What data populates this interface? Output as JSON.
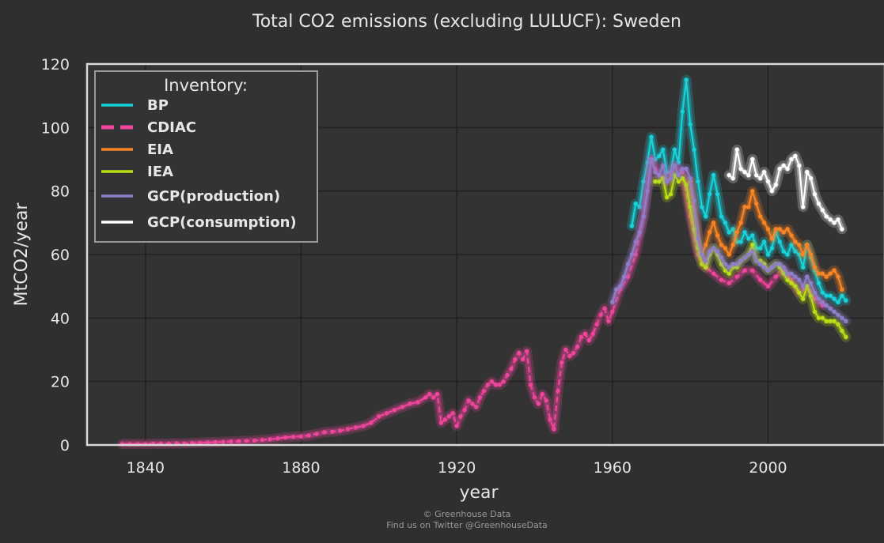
{
  "chart_data": {
    "type": "line",
    "title": "Total CO2 emissions (excluding LULUCF): Sweden",
    "xlabel": "year",
    "ylabel": "MtCO2/year",
    "xlim": [
      1825,
      2030
    ],
    "ylim": [
      0,
      120
    ],
    "x_ticks": [
      1840,
      1880,
      1920,
      1960,
      2000
    ],
    "y_ticks": [
      0,
      20,
      40,
      60,
      80,
      100,
      120
    ],
    "grid": true,
    "legend": {
      "title": "Inventory:",
      "placement": "top-left"
    },
    "series": [
      {
        "name": "BP",
        "color": "#16d3dc",
        "dash": "solid",
        "x": [
          1965,
          1966,
          1967,
          1968,
          1969,
          1970,
          1971,
          1972,
          1973,
          1974,
          1975,
          1976,
          1977,
          1978,
          1979,
          1980,
          1981,
          1982,
          1983,
          1984,
          1985,
          1986,
          1987,
          1988,
          1989,
          1990,
          1991,
          1992,
          1993,
          1994,
          1995,
          1996,
          1997,
          1998,
          1999,
          2000,
          2001,
          2002,
          2003,
          2004,
          2005,
          2006,
          2007,
          2008,
          2009,
          2010,
          2011,
          2012,
          2013,
          2014,
          2015,
          2016,
          2017,
          2018,
          2019,
          2020
        ],
        "y": [
          69,
          76,
          75,
          83,
          89,
          97,
          90,
          91,
          93,
          86,
          86,
          93,
          89,
          105,
          115,
          101,
          93,
          83,
          75,
          72,
          79,
          85,
          79,
          72,
          70,
          67,
          68,
          64,
          64,
          67,
          65,
          66,
          62,
          62,
          64,
          60,
          62,
          67,
          64,
          61,
          60,
          63,
          61,
          60,
          56,
          63,
          59,
          55,
          51,
          48,
          47,
          47,
          46,
          45,
          47,
          45.5
        ]
      },
      {
        "name": "CDIAC",
        "color": "#f0459d",
        "dash": "dashed",
        "x": [
          1834,
          1836,
          1838,
          1840,
          1842,
          1844,
          1846,
          1848,
          1850,
          1852,
          1854,
          1856,
          1858,
          1860,
          1862,
          1864,
          1866,
          1868,
          1870,
          1872,
          1874,
          1876,
          1878,
          1880,
          1882,
          1884,
          1886,
          1888,
          1890,
          1892,
          1894,
          1896,
          1898,
          1900,
          1902,
          1904,
          1906,
          1908,
          1910,
          1912,
          1913,
          1914,
          1915,
          1916,
          1917,
          1918,
          1919,
          1920,
          1921,
          1922,
          1923,
          1924,
          1925,
          1926,
          1927,
          1928,
          1929,
          1930,
          1931,
          1932,
          1933,
          1934,
          1935,
          1936,
          1937,
          1938,
          1939,
          1940,
          1941,
          1942,
          1943,
          1944,
          1945,
          1946,
          1947,
          1948,
          1949,
          1950,
          1951,
          1952,
          1953,
          1954,
          1955,
          1956,
          1957,
          1958,
          1959,
          1960,
          1962,
          1964,
          1966,
          1968,
          1970,
          1972,
          1974,
          1976,
          1978,
          1980,
          1982,
          1984,
          1986,
          1988,
          1990,
          1992,
          1994,
          1996,
          1998,
          2000,
          2002,
          2004,
          2006,
          2008,
          2010,
          2012,
          2014
        ],
        "y": [
          0.3,
          0.3,
          0.3,
          0.3,
          0.4,
          0.4,
          0.4,
          0.5,
          0.5,
          0.6,
          0.7,
          0.8,
          0.9,
          1.0,
          1.1,
          1.2,
          1.3,
          1.4,
          1.6,
          1.8,
          2.1,
          2.4,
          2.6,
          2.7,
          3.0,
          3.5,
          4.0,
          4.2,
          4.5,
          5.0,
          5.5,
          6.0,
          7.0,
          9.0,
          10.0,
          11.0,
          12.0,
          13.0,
          13.5,
          15.0,
          16.0,
          15.0,
          16.0,
          7.0,
          8.0,
          9.0,
          10.0,
          6.0,
          9.0,
          11.0,
          14.0,
          13.0,
          12.0,
          15.0,
          17.0,
          19.0,
          20.0,
          19.0,
          19.0,
          20.0,
          22.0,
          24.0,
          27.0,
          29.0,
          27.0,
          29.5,
          19.0,
          15.0,
          13.0,
          16.0,
          14.0,
          8.0,
          5.0,
          17.0,
          26.0,
          30.0,
          28.0,
          29.0,
          31.0,
          34.0,
          35.0,
          33.0,
          35.0,
          38.0,
          41.0,
          43.0,
          39.0,
          42.0,
          49.0,
          53.0,
          60.0,
          72.0,
          90.0,
          85.0,
          83.0,
          88.0,
          86.0,
          72.0,
          60.0,
          56.0,
          54.0,
          52.0,
          51.0,
          53.0,
          55.0,
          55.0,
          52.0,
          50.0,
          53.0,
          55.0,
          52.0,
          48.0,
          50.0,
          46.0,
          44.0
        ]
      },
      {
        "name": "EIA",
        "color": "#fb8523",
        "dash": "solid",
        "x": [
          1980,
          1981,
          1982,
          1983,
          1984,
          1985,
          1986,
          1987,
          1988,
          1989,
          1990,
          1991,
          1992,
          1993,
          1994,
          1995,
          1996,
          1997,
          1998,
          1999,
          2000,
          2001,
          2002,
          2003,
          2004,
          2005,
          2006,
          2007,
          2008,
          2009,
          2010,
          2011,
          2012,
          2013,
          2014,
          2015,
          2016,
          2017,
          2018,
          2019
        ],
        "y": [
          83,
          74,
          65,
          60,
          63,
          67,
          70,
          66,
          63,
          62,
          60,
          63,
          67,
          70,
          75,
          75,
          80,
          76,
          72,
          70,
          68,
          65,
          68,
          68,
          67,
          68,
          66,
          64,
          63,
          60,
          63,
          60,
          56,
          54,
          54,
          53,
          54,
          55,
          53,
          49
        ]
      },
      {
        "name": "IEA",
        "color": "#b9df16",
        "dash": "solid",
        "x": [
          1971,
          1972,
          1973,
          1974,
          1975,
          1976,
          1977,
          1978,
          1979,
          1980,
          1981,
          1982,
          1983,
          1984,
          1985,
          1986,
          1987,
          1988,
          1989,
          1990,
          1991,
          1992,
          1993,
          1994,
          1995,
          1996,
          1997,
          1998,
          1999,
          2000,
          2001,
          2002,
          2003,
          2004,
          2005,
          2006,
          2007,
          2008,
          2009,
          2010,
          2011,
          2012,
          2013,
          2014,
          2015,
          2016,
          2017,
          2018,
          2019,
          2020
        ],
        "y": [
          83,
          83,
          84,
          78,
          79,
          85,
          83,
          84,
          82,
          75,
          68,
          62,
          57,
          56,
          60,
          62,
          60,
          57,
          55,
          54,
          56,
          56,
          58,
          59,
          60,
          63,
          58,
          58,
          57,
          55,
          56,
          57,
          56,
          54,
          52,
          51,
          50,
          48,
          46,
          50,
          47,
          42,
          40,
          40,
          39,
          39,
          39,
          38,
          36,
          34
        ]
      },
      {
        "name": "GCP(production)",
        "color": "#8f7ec9",
        "dash": "solid",
        "x": [
          1960,
          1961,
          1962,
          1963,
          1964,
          1965,
          1966,
          1967,
          1968,
          1969,
          1970,
          1971,
          1972,
          1973,
          1974,
          1975,
          1976,
          1977,
          1978,
          1979,
          1980,
          1981,
          1982,
          1983,
          1984,
          1985,
          1986,
          1987,
          1988,
          1989,
          1990,
          1991,
          1992,
          1993,
          1994,
          1995,
          1996,
          1997,
          1998,
          1999,
          2000,
          2001,
          2002,
          2003,
          2004,
          2005,
          2006,
          2007,
          2008,
          2009,
          2010,
          2011,
          2012,
          2013,
          2014,
          2015,
          2016,
          2017,
          2018,
          2019,
          2020
        ],
        "y": [
          45,
          49,
          50,
          53,
          57,
          60,
          64,
          67,
          72,
          80,
          90,
          86,
          85,
          88,
          83,
          84,
          88,
          85,
          87,
          87,
          84,
          77,
          65,
          60,
          58,
          61,
          62,
          61,
          59,
          57,
          56,
          57,
          57,
          58,
          59,
          60,
          61,
          58,
          57,
          56,
          55,
          56,
          57,
          57,
          56,
          54,
          54,
          53,
          52,
          50,
          53,
          51,
          48,
          46,
          45,
          44,
          43,
          42,
          41,
          40,
          39
        ]
      },
      {
        "name": "GCP(consumption)",
        "color": "#ffffff",
        "dash": "solid",
        "x": [
          1990,
          1991,
          1992,
          1993,
          1994,
          1995,
          1996,
          1997,
          1998,
          1999,
          2000,
          2001,
          2002,
          2003,
          2004,
          2005,
          2006,
          2007,
          2008,
          2009,
          2010,
          2011,
          2012,
          2013,
          2014,
          2015,
          2016,
          2017,
          2018,
          2019
        ],
        "y": [
          85,
          84,
          93,
          87,
          86,
          85,
          90,
          85,
          84,
          86,
          83,
          80,
          82,
          87,
          88,
          87,
          90,
          91,
          88,
          75,
          86,
          84,
          79,
          76,
          74,
          72,
          71,
          70,
          71,
          68
        ]
      }
    ]
  },
  "credits": {
    "line1": "© Greenhouse Data",
    "line2": "Find us on Twitter @GreenhouseData"
  }
}
